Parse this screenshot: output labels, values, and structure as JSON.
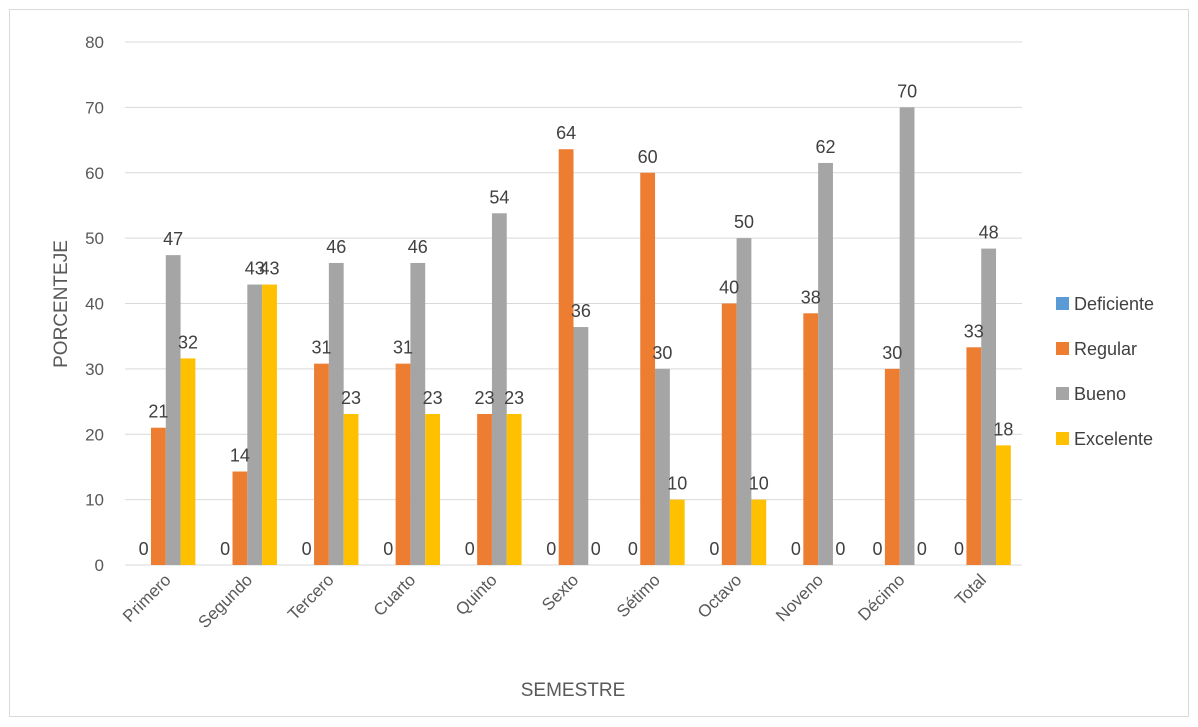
{
  "chart_data": {
    "type": "bar",
    "title": "",
    "xlabel": "SEMESTRE",
    "ylabel": "PORCENTEJE",
    "ylim": [
      0,
      80
    ],
    "yticks": [
      0,
      10,
      20,
      30,
      40,
      50,
      60,
      70,
      80
    ],
    "grid": true,
    "legend_position": "right",
    "categories": [
      "Primero",
      "Segundo",
      "Tercero",
      "Cuarto",
      "Quinto",
      "Sexto",
      "Sétimo",
      "Octavo",
      "Noveno",
      "Décimo",
      "Total"
    ],
    "series": [
      {
        "name": "Deficiente",
        "color": "#5B9BD5",
        "values": [
          0,
          0,
          0,
          0,
          0,
          0,
          0,
          0,
          0,
          0,
          0
        ],
        "labels": [
          "0",
          "0",
          "0",
          "0",
          "0",
          "0",
          "0",
          "0",
          "0",
          "0",
          "0"
        ]
      },
      {
        "name": "Regular",
        "color": "#ED7D31",
        "values": [
          21,
          14.3,
          30.8,
          30.8,
          23.1,
          63.6,
          60,
          40,
          38.5,
          30,
          33.3
        ],
        "labels": [
          "21",
          "14",
          "31",
          "31",
          "23",
          "64",
          "60",
          "40",
          "38",
          "30",
          "33"
        ]
      },
      {
        "name": "Bueno",
        "color": "#A5A5A5",
        "values": [
          47.4,
          42.9,
          46.2,
          46.2,
          53.8,
          36.4,
          30,
          50,
          61.5,
          70,
          48.4
        ],
        "labels": [
          "47",
          "43",
          "46",
          "46",
          "54",
          "36",
          "30",
          "50",
          "62",
          "70",
          "48"
        ]
      },
      {
        "name": "Excelente",
        "color": "#FFC000",
        "values": [
          31.6,
          42.9,
          23.1,
          23.1,
          23.1,
          0,
          10,
          10,
          0,
          0,
          18.3
        ],
        "labels": [
          "32",
          "43",
          "23",
          "23",
          "23",
          "0",
          "10",
          "10",
          "0",
          "0",
          "18"
        ]
      }
    ]
  }
}
